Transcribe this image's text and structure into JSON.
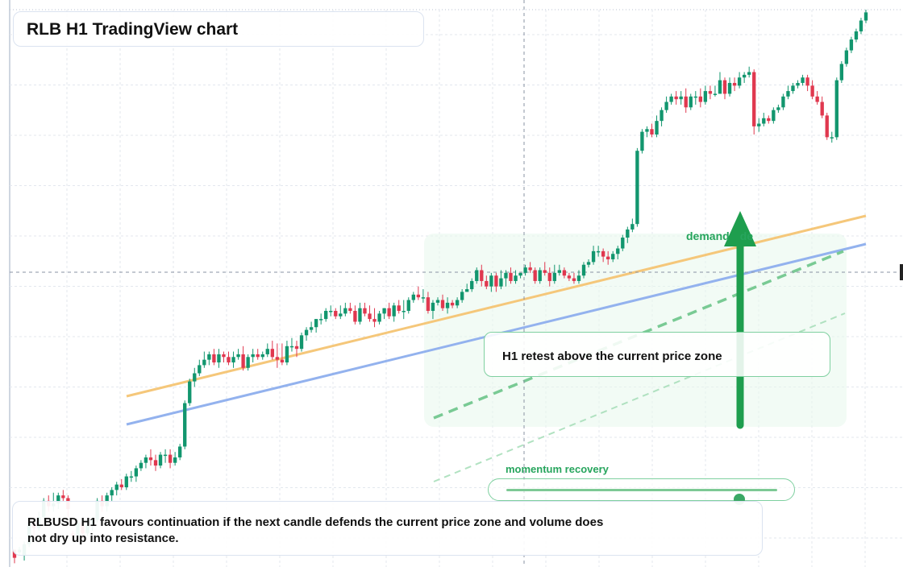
{
  "header": {
    "title": "RLB H1 TradingView chart"
  },
  "annotations": {
    "demand_label": "demand",
    "demand_label_tail": "de",
    "retest_label": "H1 retest above the current price zone",
    "momentum_label": "momentum recovery",
    "momentum_level_pct": 86
  },
  "note": {
    "text": "RLBUSD H1 favours continuation if the next candle defends the current price zone and volume does not dry up into resistance."
  },
  "colors": {
    "up": "#12966e",
    "down": "#e0384f",
    "trend_orange": "#f5c77a",
    "trend_blue": "#93b2ee",
    "accent_green": "#1e9e4e",
    "grid": "#e3e7ee"
  },
  "chart_data": {
    "type": "candlestick",
    "symbol": "RLBUSD",
    "timeframe": "H1",
    "price_range": [
      0,
      100
    ],
    "candles": [
      [
        4,
        1,
        3,
        -1
      ],
      [
        3,
        4,
        5,
        2
      ],
      [
        2,
        6,
        7,
        0
      ],
      [
        6,
        14,
        15,
        5
      ],
      [
        14,
        12,
        16,
        9
      ],
      [
        12,
        16,
        18,
        11
      ],
      [
        16,
        22,
        23,
        15
      ],
      [
        22,
        20,
        24,
        18
      ],
      [
        20,
        21,
        25,
        18
      ],
      [
        21,
        24,
        25,
        19
      ],
      [
        24,
        23,
        26,
        22
      ],
      [
        23,
        19,
        24,
        16
      ],
      [
        10,
        9,
        11,
        7
      ],
      [
        9,
        14,
        15,
        7
      ],
      [
        14,
        10,
        15,
        8
      ],
      [
        10,
        13,
        15,
        9
      ],
      [
        13,
        15,
        16,
        11
      ],
      [
        15,
        22,
        23,
        14
      ],
      [
        22,
        20,
        24,
        18
      ],
      [
        20,
        24,
        25,
        18
      ],
      [
        24,
        26,
        27,
        22
      ],
      [
        26,
        28,
        29,
        24
      ],
      [
        28,
        27,
        30,
        26
      ],
      [
        27,
        31,
        32,
        26
      ],
      [
        31,
        31,
        33,
        29
      ],
      [
        31,
        34,
        35,
        29
      ],
      [
        34,
        36,
        37,
        33
      ],
      [
        36,
        38,
        39,
        34
      ],
      [
        38,
        37,
        41,
        35
      ],
      [
        37,
        35,
        39,
        33
      ],
      [
        35,
        39,
        40,
        34
      ],
      [
        39,
        39,
        41,
        36
      ],
      [
        39,
        36,
        41,
        34
      ],
      [
        36,
        38,
        40,
        35
      ],
      [
        38,
        42,
        43,
        37
      ],
      [
        42,
        58,
        59,
        41
      ],
      [
        58,
        66,
        67,
        57
      ],
      [
        66,
        69,
        71,
        64
      ],
      [
        69,
        72,
        74,
        68
      ],
      [
        72,
        74,
        77,
        71
      ],
      [
        74,
        76,
        77,
        72
      ],
      [
        76,
        73,
        78,
        72
      ],
      [
        73,
        76,
        78,
        71
      ],
      [
        76,
        75,
        77,
        73
      ],
      [
        75,
        73,
        77,
        72
      ],
      [
        73,
        75,
        77,
        71
      ],
      [
        75,
        76,
        78,
        74
      ],
      [
        76,
        71,
        79,
        70
      ],
      [
        71,
        75,
        76,
        70
      ],
      [
        75,
        76,
        78,
        73
      ],
      [
        76,
        75,
        78,
        74
      ],
      [
        75,
        76,
        77,
        74
      ],
      [
        76,
        78,
        80,
        75
      ],
      [
        78,
        75,
        81,
        74
      ],
      [
        75,
        74,
        80,
        71
      ],
      [
        74,
        73,
        80,
        72
      ],
      [
        73,
        79,
        81,
        72
      ],
      [
        79,
        79,
        82,
        77
      ],
      [
        79,
        78,
        81,
        75
      ],
      [
        78,
        83,
        84,
        77
      ],
      [
        83,
        85,
        86,
        81
      ],
      [
        85,
        86,
        88,
        84
      ],
      [
        86,
        89,
        89,
        84
      ],
      [
        89,
        89,
        91,
        87
      ],
      [
        89,
        92,
        93,
        88
      ],
      [
        92,
        92,
        94,
        90
      ],
      [
        92,
        90,
        93,
        89
      ],
      [
        90,
        91,
        94,
        89
      ],
      [
        91,
        93,
        95,
        90
      ],
      [
        93,
        92,
        95,
        91
      ],
      [
        92,
        88,
        94,
        87
      ],
      [
        88,
        93,
        95,
        87
      ],
      [
        93,
        91,
        95,
        90
      ],
      [
        91,
        89,
        94,
        88
      ],
      [
        89,
        88,
        93,
        86
      ],
      [
        88,
        91,
        92,
        87
      ],
      [
        91,
        93,
        93,
        89
      ],
      [
        93,
        90,
        95,
        89
      ],
      [
        90,
        94,
        95,
        88
      ],
      [
        94,
        92,
        96,
        91
      ],
      [
        92,
        92,
        96,
        89
      ],
      [
        92,
        96,
        97,
        91
      ],
      [
        96,
        98,
        99,
        95
      ],
      [
        98,
        97,
        101,
        96
      ],
      [
        97,
        97,
        100,
        95
      ],
      [
        97,
        92,
        99,
        91
      ],
      [
        92,
        95,
        96,
        89
      ],
      [
        95,
        96,
        97,
        94
      ],
      [
        96,
        93,
        98,
        92
      ],
      [
        93,
        95,
        97,
        91
      ],
      [
        95,
        94,
        96,
        93
      ],
      [
        94,
        96,
        97,
        93
      ],
      [
        96,
        99,
        100,
        95
      ],
      [
        99,
        100,
        102,
        99
      ],
      [
        100,
        103,
        104,
        99
      ],
      [
        103,
        107,
        108,
        102
      ],
      [
        107,
        103,
        109,
        101
      ],
      [
        103,
        101,
        105,
        100
      ],
      [
        101,
        105,
        106,
        99
      ],
      [
        105,
        101,
        106,
        99
      ],
      [
        101,
        104,
        107,
        100
      ],
      [
        104,
        106,
        107,
        101
      ],
      [
        106,
        103,
        108,
        102
      ],
      [
        103,
        105,
        107,
        102
      ],
      [
        105,
        106,
        106,
        104
      ],
      [
        106,
        108,
        109,
        105
      ],
      [
        108,
        107,
        110,
        106
      ],
      [
        107,
        103,
        108,
        102
      ],
      [
        103,
        107,
        108,
        102
      ],
      [
        107,
        106,
        110,
        105
      ],
      [
        106,
        103,
        108,
        101
      ],
      [
        103,
        106,
        109,
        102
      ],
      [
        106,
        107,
        109,
        105
      ],
      [
        107,
        105,
        108,
        104
      ],
      [
        105,
        104,
        106,
        103
      ],
      [
        104,
        103,
        106,
        102
      ],
      [
        103,
        105,
        107,
        102
      ],
      [
        105,
        109,
        110,
        104
      ],
      [
        109,
        110,
        111,
        108
      ],
      [
        110,
        114,
        116,
        109
      ],
      [
        114,
        114,
        116,
        112
      ],
      [
        114,
        112,
        115,
        110
      ],
      [
        112,
        111,
        114,
        109
      ],
      [
        111,
        113,
        114,
        110
      ],
      [
        113,
        115,
        116,
        111
      ],
      [
        115,
        119,
        120,
        114
      ],
      [
        119,
        122,
        123,
        117
      ],
      [
        122,
        124,
        126,
        121
      ],
      [
        124,
        151,
        152,
        123
      ],
      [
        151,
        158,
        159,
        150
      ],
      [
        158,
        159,
        160,
        156
      ],
      [
        159,
        157,
        161,
        156
      ],
      [
        157,
        162,
        164,
        156
      ],
      [
        162,
        166,
        167,
        160
      ],
      [
        166,
        169,
        171,
        165
      ],
      [
        169,
        171,
        172,
        168
      ],
      [
        171,
        170,
        173,
        168
      ],
      [
        170,
        171,
        173,
        168
      ],
      [
        171,
        167,
        174,
        165
      ],
      [
        167,
        171,
        172,
        166
      ],
      [
        171,
        171,
        173,
        168
      ],
      [
        171,
        169,
        174,
        167
      ],
      [
        169,
        173,
        175,
        168
      ],
      [
        173,
        172,
        175,
        170
      ],
      [
        172,
        172,
        175,
        171
      ],
      [
        172,
        177,
        180,
        172
      ],
      [
        177,
        172,
        178,
        170
      ],
      [
        172,
        176,
        178,
        171
      ],
      [
        176,
        175,
        178,
        173
      ],
      [
        175,
        178,
        180,
        174
      ],
      [
        178,
        179,
        180,
        176
      ],
      [
        179,
        180,
        182,
        178
      ],
      [
        180,
        160,
        181,
        157
      ],
      [
        160,
        161,
        163,
        158
      ],
      [
        161,
        163,
        165,
        160
      ],
      [
        163,
        162,
        164,
        161
      ],
      [
        162,
        166,
        167,
        161
      ],
      [
        166,
        167,
        168,
        165
      ],
      [
        167,
        171,
        172,
        166
      ],
      [
        171,
        173,
        175,
        170
      ],
      [
        173,
        175,
        176,
        172
      ],
      [
        175,
        176,
        177,
        174
      ],
      [
        176,
        178,
        179,
        175
      ],
      [
        178,
        175,
        179,
        173
      ],
      [
        175,
        171,
        177,
        170
      ],
      [
        171,
        169,
        173,
        168
      ],
      [
        169,
        164,
        171,
        163
      ],
      [
        164,
        156,
        165,
        155
      ],
      [
        156,
        156,
        158,
        154
      ],
      [
        156,
        177,
        178,
        155
      ],
      [
        177,
        183,
        184,
        176
      ],
      [
        183,
        188,
        189,
        182
      ],
      [
        188,
        192,
        193,
        187
      ],
      [
        192,
        195,
        196,
        191
      ],
      [
        195,
        199,
        200,
        194
      ],
      [
        199,
        202,
        203,
        198
      ]
    ]
  }
}
